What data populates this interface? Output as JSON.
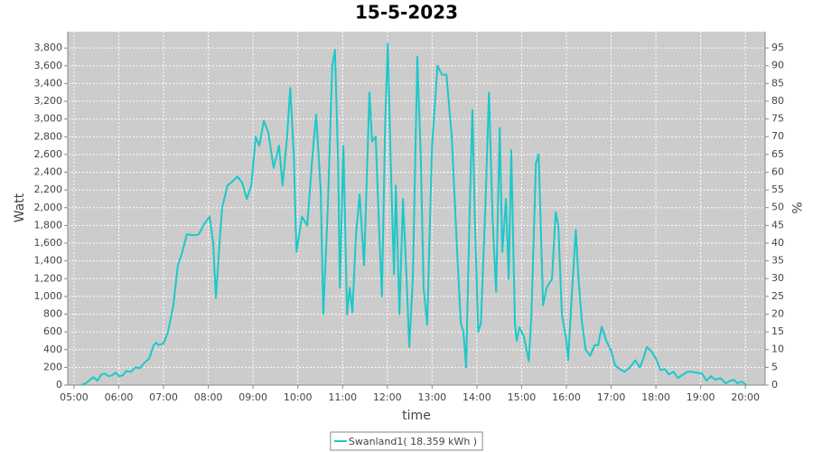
{
  "chart_data": {
    "type": "line",
    "title": "15-5-2023",
    "x_label": "time",
    "y_label": "Watt",
    "y2_label": "%",
    "x": [
      5.16,
      5.26,
      5.36,
      5.44,
      5.52,
      5.61,
      5.69,
      5.77,
      5.85,
      5.93,
      6.01,
      6.09,
      6.17,
      6.27,
      6.37,
      6.47,
      6.57,
      6.68,
      6.78,
      6.84,
      6.88,
      7.0,
      7.1,
      7.22,
      7.32,
      7.42,
      7.52,
      7.69,
      7.79,
      7.89,
      8.03,
      8.11,
      8.17,
      8.25,
      8.31,
      8.43,
      8.55,
      8.65,
      8.76,
      8.86,
      8.96,
      9.06,
      9.14,
      9.24,
      9.34,
      9.46,
      9.58,
      9.66,
      9.76,
      9.83,
      9.91,
      9.97,
      10.09,
      10.21,
      10.33,
      10.41,
      10.51,
      10.57,
      10.67,
      10.77,
      10.83,
      10.9,
      10.94,
      11.02,
      11.1,
      11.16,
      11.22,
      11.3,
      11.38,
      11.48,
      11.6,
      11.66,
      11.74,
      11.82,
      11.88,
      11.95,
      12.01,
      12.07,
      12.15,
      12.19,
      12.27,
      12.35,
      12.43,
      12.49,
      12.57,
      12.67,
      12.75,
      12.81,
      12.89,
      13.0,
      13.12,
      13.22,
      13.32,
      13.44,
      13.56,
      13.64,
      13.7,
      13.76,
      13.84,
      13.9,
      13.96,
      14.03,
      14.09,
      14.19,
      14.27,
      14.35,
      14.43,
      14.51,
      14.57,
      14.65,
      14.71,
      14.77,
      14.85,
      14.89,
      14.95,
      15.05,
      15.16,
      15.22,
      15.32,
      15.38,
      15.48,
      15.56,
      15.68,
      15.76,
      15.82,
      15.9,
      16.0,
      16.04,
      16.12,
      16.21,
      16.27,
      16.35,
      16.43,
      16.53,
      16.63,
      16.71,
      16.79,
      16.89,
      16.99,
      17.09,
      17.19,
      17.3,
      17.42,
      17.54,
      17.64,
      17.72,
      17.8,
      17.9,
      18.0,
      18.1,
      18.2,
      18.29,
      18.39,
      18.49,
      18.61,
      18.71,
      18.81,
      18.91,
      19.03,
      19.13,
      19.23,
      19.33,
      19.44,
      19.56,
      19.66,
      19.74,
      19.82,
      19.92,
      20.02
    ],
    "series": [
      {
        "name": "Swanland1( 18.359 kWh )",
        "color": "#1cc8c8",
        "values": [
          0,
          20,
          60,
          90,
          50,
          120,
          130,
          100,
          110,
          140,
          100,
          110,
          160,
          150,
          200,
          190,
          250,
          300,
          450,
          480,
          450,
          470,
          600,
          900,
          1350,
          1500,
          1700,
          1690,
          1700,
          1800,
          1900,
          1600,
          980,
          1600,
          2000,
          2250,
          2300,
          2350,
          2280,
          2100,
          2250,
          2800,
          2700,
          2980,
          2850,
          2450,
          2700,
          2250,
          2800,
          3350,
          2600,
          1500,
          1900,
          1800,
          2600,
          3050,
          2200,
          800,
          2000,
          3600,
          3780,
          2500,
          1100,
          2700,
          800,
          1100,
          820,
          1700,
          2150,
          1350,
          3300,
          2750,
          2800,
          1700,
          1000,
          2900,
          3850,
          2600,
          1250,
          2250,
          800,
          2100,
          1200,
          430,
          1200,
          3700,
          2500,
          1100,
          680,
          2700,
          3600,
          3500,
          3500,
          2800,
          1500,
          700,
          600,
          200,
          2000,
          3100,
          1800,
          600,
          700,
          2000,
          3300,
          1900,
          1050,
          2900,
          1500,
          2100,
          1200,
          2650,
          700,
          500,
          650,
          550,
          270,
          800,
          2500,
          2600,
          900,
          1100,
          1200,
          1950,
          1800,
          800,
          500,
          280,
          1000,
          1750,
          1200,
          700,
          400,
          330,
          450,
          450,
          660,
          500,
          400,
          220,
          180,
          150,
          200,
          280,
          200,
          300,
          430,
          380,
          300,
          170,
          180,
          120,
          150,
          80,
          120,
          150,
          150,
          140,
          130,
          50,
          100,
          60,
          80,
          20,
          50,
          60,
          20,
          40,
          0
        ]
      }
    ],
    "xlim": [
      4.86,
      20.44
    ],
    "xticks": [
      {
        "value": 5,
        "label": "05:00"
      },
      {
        "value": 6,
        "label": "06:00"
      },
      {
        "value": 7,
        "label": "07:00"
      },
      {
        "value": 8,
        "label": "08:00"
      },
      {
        "value": 9,
        "label": "09:00"
      },
      {
        "value": 10,
        "label": "10:00"
      },
      {
        "value": 11,
        "label": "11:00"
      },
      {
        "value": 12,
        "label": "12:00"
      },
      {
        "value": 13,
        "label": "13:00"
      },
      {
        "value": 14,
        "label": "14:00"
      },
      {
        "value": 15,
        "label": "15:00"
      },
      {
        "value": 16,
        "label": "16:00"
      },
      {
        "value": 17,
        "label": "17:00"
      },
      {
        "value": 18,
        "label": "18:00"
      },
      {
        "value": 19,
        "label": "19:00"
      },
      {
        "value": 20,
        "label": "20:00"
      }
    ],
    "ylim": [
      0,
      3985
    ],
    "yticks": [
      0,
      200,
      400,
      600,
      800,
      {
        "value": 1000,
        "label": "1,000"
      },
      {
        "value": 1200,
        "label": "1,200"
      },
      {
        "value": 1400,
        "label": "1,400"
      },
      {
        "value": 1600,
        "label": "1,600"
      },
      {
        "value": 1800,
        "label": "1,800"
      },
      {
        "value": 2000,
        "label": "2,000"
      },
      {
        "value": 2200,
        "label": "2,200"
      },
      {
        "value": 2400,
        "label": "2,400"
      },
      {
        "value": 2600,
        "label": "2,600"
      },
      {
        "value": 2800,
        "label": "2,800"
      },
      {
        "value": 3000,
        "label": "3,000"
      },
      {
        "value": 3200,
        "label": "3,200"
      },
      {
        "value": 3400,
        "label": "3,400"
      },
      {
        "value": 3600,
        "label": "3,600"
      },
      {
        "value": 3800,
        "label": "3,800"
      }
    ],
    "y2lim": [
      0,
      99.6
    ],
    "y2ticks": [
      0,
      5,
      10,
      15,
      20,
      25,
      30,
      35,
      40,
      45,
      50,
      55,
      60,
      65,
      70,
      75,
      80,
      85,
      90,
      95
    ],
    "grid": true,
    "legend": "bottom",
    "background": "#cccccc"
  }
}
